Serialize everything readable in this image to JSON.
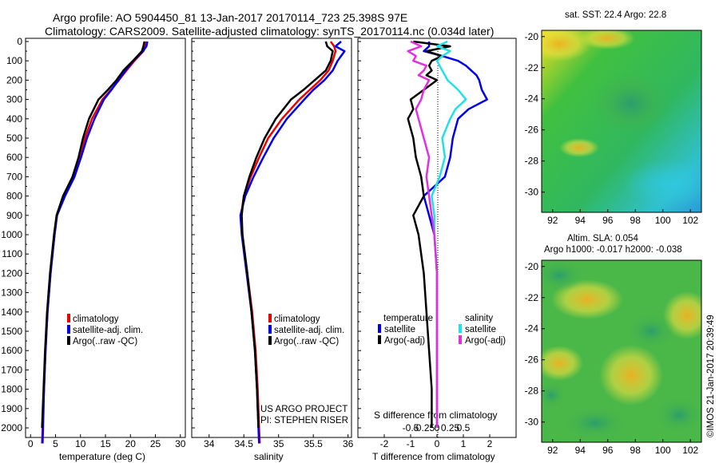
{
  "header": {
    "line1": "Argo profile: AO 5904450_81 13-Jan-2017 20170114_723 25.398S 97E",
    "line2": "Climatology: CARS2009. Satellite-adjusted climatology: synTS_20170114.nc (0.034d later)"
  },
  "depth_ticks": [
    "0",
    "100",
    "200",
    "300",
    "400",
    "500",
    "600",
    "700",
    "800",
    "900",
    "1000",
    "1100",
    "1200",
    "1300",
    "1400",
    "1500",
    "1600",
    "1700",
    "1800",
    "1900",
    "2000"
  ],
  "panels": {
    "temperature": {
      "xlabel": "temperature (deg C)",
      "xticks": [
        "0",
        "5",
        "10",
        "15",
        "20",
        "25",
        "30"
      ],
      "legend": [
        "climatology",
        "satellite-adj. clim.",
        "Argo(..raw -QC)"
      ]
    },
    "salinity": {
      "xlabel": "salinity",
      "xticks": [
        "34",
        "34.5",
        "35",
        "35.5",
        "36"
      ],
      "legend": [
        "climatology",
        "satellite-adj. clim.",
        "Argo(..raw -QC)"
      ],
      "credit1": "US ARGO PROJECT",
      "credit2": "PI: STEPHEN RISER"
    },
    "difference": {
      "xlabel": "T difference from climatology",
      "xticks": [
        "-2",
        "-1",
        "0",
        "1",
        "2"
      ],
      "s_label": "S difference from climatology",
      "s_ticks": [
        "-0.5",
        "-0.25",
        "0",
        "0.25",
        "0.5"
      ],
      "legend_temp_title": "temperature",
      "legend_sal_title": "salinity",
      "legend_temp": [
        "satellite",
        "Argo(-adj)"
      ],
      "legend_sal": [
        "satellite",
        "Argo(-adj)"
      ]
    }
  },
  "maps": {
    "sst_title": "sat. SST: 22.4  Argo: 22.8",
    "sla_title1": "Altim. SLA: 0.054",
    "sla_title2": "Argo h1000: -0.017  h2000: -0.038",
    "yticks": [
      "-20",
      "-22",
      "-24",
      "-26",
      "-28",
      "-30"
    ],
    "xticks": [
      "92",
      "94",
      "96",
      "98",
      "100",
      "102"
    ]
  },
  "watermark": "©IMOS 21-Jan-2017 20:39:49",
  "colors": {
    "climatology": "#ee0000",
    "satellite": "#0000ee",
    "argo": "#000000",
    "salinity_satellite": "#22e0e8",
    "salinity_argo": "#e030e0"
  },
  "chart_data": [
    {
      "type": "line",
      "panel": "temperature",
      "xlabel": "temperature (deg C)",
      "ylabel": "",
      "xlim": [
        -1,
        31
      ],
      "ylim": [
        2080,
        0
      ],
      "depth": [
        0,
        25,
        50,
        100,
        150,
        200,
        250,
        300,
        400,
        500,
        600,
        700,
        800,
        900,
        1000,
        1200,
        1400,
        1600,
        1800,
        2000,
        2080
      ],
      "series": [
        {
          "name": "climatology",
          "values": [
            23.1,
            23.0,
            22.6,
            20.8,
            19.2,
            17.7,
            16.1,
            14.4,
            12.3,
            10.9,
            9.8,
            8.6,
            6.8,
            5.3,
            4.8,
            4.0,
            3.4,
            3.0,
            2.7,
            2.4,
            2.3
          ]
        },
        {
          "name": "satellite-adj. clim.",
          "values": [
            23.4,
            23.2,
            22.5,
            20.6,
            19.0,
            17.6,
            16.2,
            14.7,
            12.8,
            11.3,
            10.1,
            8.8,
            6.9,
            5.3,
            4.8,
            4.0,
            3.4,
            3.0,
            2.7,
            2.5,
            2.4
          ]
        },
        {
          "name": "Argo(..raw -QC)",
          "values": [
            22.8,
            22.6,
            22.3,
            20.5,
            18.6,
            17.2,
            15.5,
            13.6,
            11.7,
            10.5,
            9.6,
            8.4,
            6.5,
            5.2,
            4.7,
            3.9,
            3.3,
            2.9,
            2.6,
            2.3
          ]
        }
      ]
    },
    {
      "type": "line",
      "panel": "salinity",
      "xlabel": "salinity",
      "ylabel": "",
      "xlim": [
        33.75,
        36.05
      ],
      "ylim": [
        2080,
        0
      ],
      "depth": [
        0,
        25,
        50,
        100,
        150,
        200,
        250,
        300,
        400,
        500,
        600,
        700,
        800,
        900,
        1000,
        1200,
        1400,
        1600,
        1800,
        2000,
        2080
      ],
      "series": [
        {
          "name": "climatology",
          "values": [
            35.75,
            35.8,
            35.82,
            35.78,
            35.72,
            35.6,
            35.45,
            35.3,
            35.05,
            34.85,
            34.72,
            34.6,
            34.5,
            34.46,
            34.48,
            34.55,
            34.62,
            34.67,
            34.7,
            34.72,
            34.73
          ]
        },
        {
          "name": "satellite-adj. clim.",
          "values": [
            35.9,
            35.82,
            35.95,
            35.85,
            35.78,
            35.66,
            35.5,
            35.37,
            35.12,
            34.93,
            34.78,
            34.64,
            34.52,
            34.45,
            34.47,
            34.54,
            34.61,
            34.66,
            34.69,
            34.71,
            34.72
          ]
        },
        {
          "name": "Argo(..raw -QC)",
          "values": [
            35.68,
            35.7,
            35.78,
            35.75,
            35.68,
            35.52,
            35.36,
            35.18,
            34.96,
            34.8,
            34.68,
            34.58,
            34.5,
            34.47,
            34.48,
            34.55,
            34.61,
            34.66,
            34.69,
            34.71
          ]
        }
      ]
    },
    {
      "type": "line",
      "panel": "difference",
      "xlabel": "T difference from climatology",
      "ylabel": "",
      "xlim": [
        -3,
        3
      ],
      "ylim": [
        2080,
        0
      ],
      "depth": [
        0,
        25,
        50,
        75,
        100,
        125,
        150,
        175,
        200,
        250,
        300,
        350,
        400,
        500,
        600,
        700,
        800,
        900,
        1000,
        1200,
        1400,
        1600,
        1800,
        2000
      ],
      "series": [
        {
          "name": "temperature satellite",
          "values": [
            -0.3,
            -0.3,
            -0.5,
            0.2,
            0.8,
            1.1,
            1.3,
            1.5,
            1.6,
            1.7,
            1.9,
            1.2,
            0.8,
            0.6,
            0.5,
            0.3,
            -0.5,
            -0.3,
            -0.1,
            0.0,
            0.0,
            0.0,
            0.0,
            0.0
          ]
        },
        {
          "name": "temperature Argo(-adj)",
          "values": [
            -0.9,
            0.5,
            -0.4,
            0.2,
            -0.2,
            -0.3,
            -0.2,
            -0.4,
            0.0,
            -0.5,
            -1.0,
            -0.9,
            -1.1,
            -0.9,
            -0.8,
            -0.6,
            -0.5,
            -0.9,
            -0.7,
            -0.5,
            -0.4,
            -0.3,
            -0.2,
            -0.2
          ]
        },
        {
          "name": "salinity satellite",
          "values": [
            0.4,
            0.0,
            0.5,
            0.2,
            0.0,
            0.1,
            0.2,
            0.3,
            0.4,
            0.8,
            1.1,
            0.7,
            0.5,
            0.2,
            0.3,
            0.1,
            -0.2,
            -0.1,
            -0.1,
            0.0,
            0.0,
            0.0,
            0.0,
            0.0
          ]
        },
        {
          "name": "salinity Argo(-adj)",
          "values": [
            -1.0,
            -0.6,
            -1.1,
            -0.8,
            -0.9,
            -0.4,
            -0.5,
            -0.7,
            -0.3,
            -0.5,
            -0.6,
            -0.8,
            -0.7,
            -0.5,
            -0.3,
            -0.4,
            -0.3,
            -0.2,
            -0.1,
            0.0,
            0.0,
            0.0,
            0.0,
            0.0
          ]
        }
      ]
    },
    {
      "type": "heatmap",
      "panel": "sst_map",
      "title": "sat. SST: 22.4  Argo: 22.8",
      "xlim": [
        91.2,
        102.8
      ],
      "ylim": [
        -31.3,
        -19.6
      ],
      "xticks": [
        92,
        94,
        96,
        98,
        100,
        102
      ],
      "yticks": [
        -20,
        -22,
        -24,
        -26,
        -28,
        -30
      ]
    },
    {
      "type": "heatmap",
      "panel": "sla_map",
      "title": "Altim. SLA: 0.054",
      "xlim": [
        91.2,
        102.8
      ],
      "ylim": [
        -31.3,
        -19.6
      ],
      "xticks": [
        92,
        94,
        96,
        98,
        100,
        102
      ],
      "yticks": [
        -20,
        -22,
        -24,
        -26,
        -28,
        -30
      ]
    }
  ]
}
